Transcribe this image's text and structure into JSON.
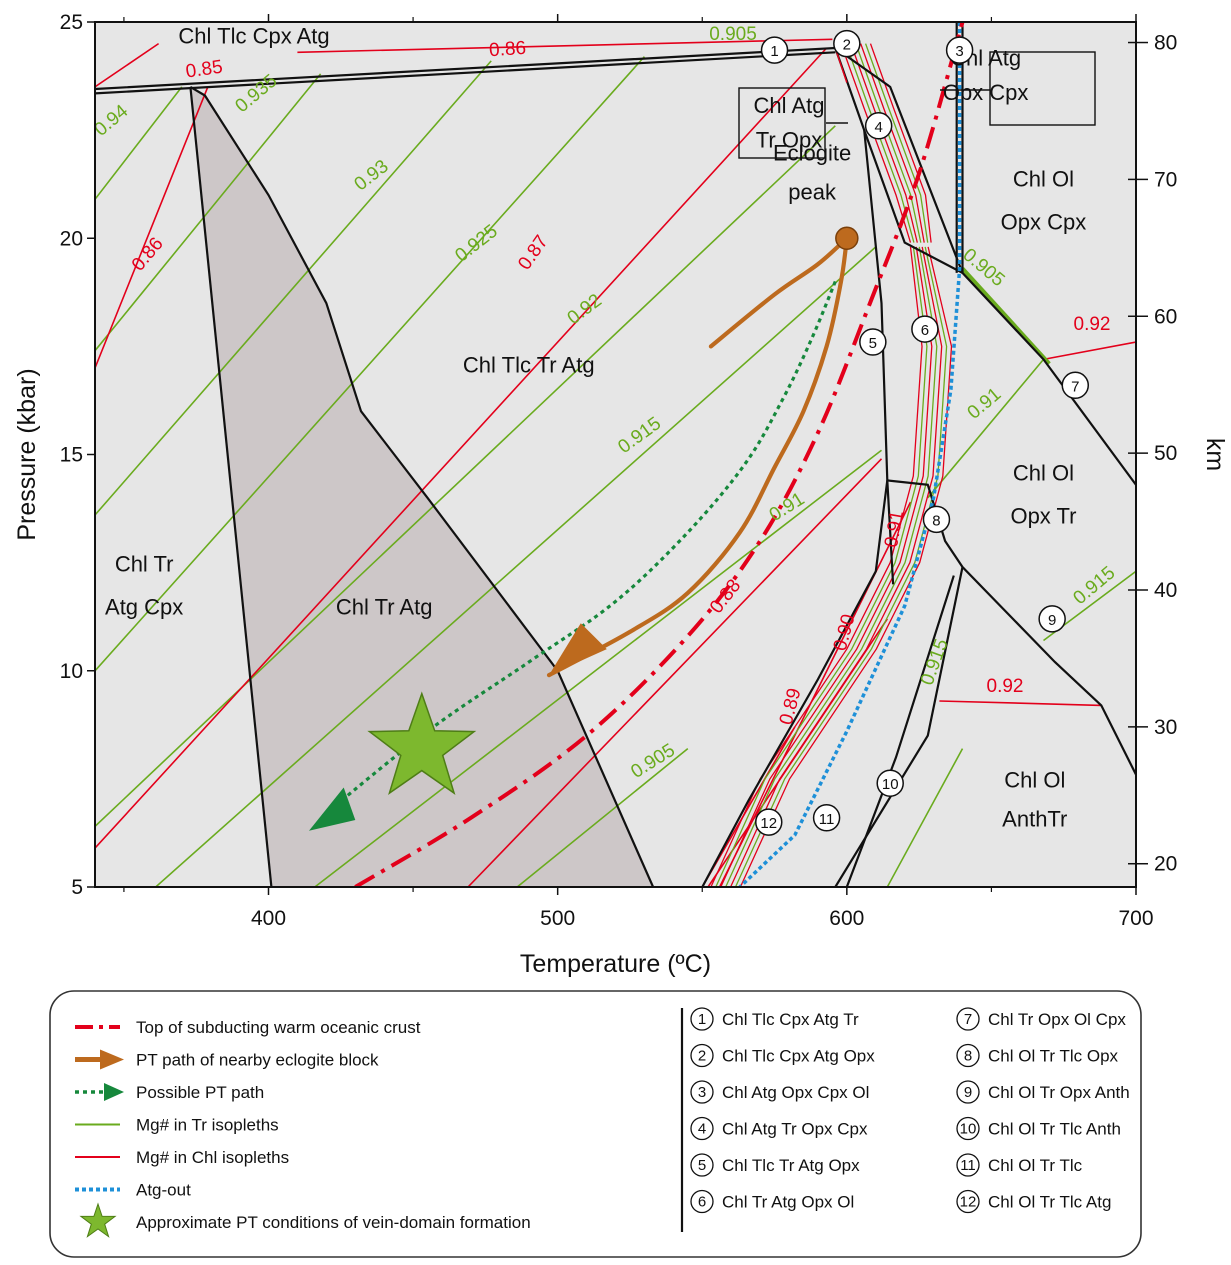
{
  "chart_data": {
    "type": "line",
    "xlabel": "Temperature (ºC)",
    "ylabel": "Pressure (kbar)",
    "y2label": "km",
    "xlim": [
      340,
      700
    ],
    "ylim": [
      5,
      25
    ],
    "x_ticks": [
      400,
      500,
      600,
      700
    ],
    "y_ticks": [
      5,
      10,
      15,
      20,
      25
    ],
    "y2_ticks": [
      20,
      30,
      40,
      50,
      60,
      70,
      80
    ],
    "fields": [
      {
        "label": "Chl Tlc Cpx Atg",
        "x": 395,
        "y": 24.5
      },
      {
        "label": "Chl Atg",
        "x": 648,
        "y": 24.0
      },
      {
        "label": "Opx Cpx",
        "x": 648,
        "y": 23.2
      },
      {
        "label": "Chl Atg",
        "x": 580,
        "y": 22.9
      },
      {
        "label": "Tr Opx",
        "x": 580,
        "y": 22.1
      },
      {
        "label": "Chl Ol",
        "x": 668,
        "y": 21.2
      },
      {
        "label": "Opx Cpx",
        "x": 668,
        "y": 20.2
      },
      {
        "label": "Chl Tlc Tr Atg",
        "x": 490,
        "y": 16.9
      },
      {
        "label": "Chl Ol",
        "x": 668,
        "y": 14.4
      },
      {
        "label": "Opx Tr",
        "x": 668,
        "y": 13.4
      },
      {
        "label": "Chl Tr",
        "x": 357,
        "y": 12.3
      },
      {
        "label": "Atg Cpx",
        "x": 357,
        "y": 11.3
      },
      {
        "label": "Chl Tr Atg",
        "x": 440,
        "y": 11.3
      },
      {
        "label": "Chl Ol",
        "x": 665,
        "y": 7.3
      },
      {
        "label": "AnthTr",
        "x": 665,
        "y": 6.4
      }
    ],
    "eclogite_label": [
      "Eclogite",
      "peak"
    ],
    "eclogite_peak": {
      "x": 600,
      "y": 20
    },
    "tr_isopleths": [
      {
        "label": "0.94",
        "x": [
          340,
          370
        ],
        "y": [
          20.9,
          23.5
        ]
      },
      {
        "label": "0.935",
        "x": [
          340,
          418
        ],
        "y": [
          17.4,
          23.8
        ]
      },
      {
        "label": "0.93",
        "x": [
          340,
          477
        ],
        "y": [
          13.6,
          24.1
        ]
      },
      {
        "label": "0.925",
        "x": [
          340,
          530
        ],
        "y": [
          10.0,
          24.2
        ]
      },
      {
        "label": "0.92",
        "x": [
          340,
          596
        ],
        "y": [
          6.4,
          22.6
        ]
      },
      {
        "label": "0.915",
        "x": [
          361,
          610
        ],
        "y": [
          5.0,
          19.8
        ]
      },
      {
        "label": "0.91",
        "x": [
          416,
          612
        ],
        "y": [
          5.0,
          15.1
        ]
      },
      {
        "label": "0.905",
        "x": [
          486,
          545
        ],
        "y": [
          5.0,
          8.2
        ]
      },
      {
        "label": "0.905",
        "x": [
          640,
          668
        ],
        "y": [
          19.3,
          17.2
        ]
      },
      {
        "label": "0.91",
        "x": [
          628,
          668
        ],
        "y": [
          14.0,
          17.2
        ]
      },
      {
        "label": "0.915",
        "x": [
          668,
          700
        ],
        "y": [
          10.7,
          12.3
        ]
      },
      {
        "label": "0.915",
        "x": [
          614,
          640
        ],
        "y": [
          5.0,
          8.2
        ]
      }
    ],
    "chl_isopleths": [
      {
        "label": "0.85",
        "x": [
          340,
          362
        ],
        "y": [
          23.5,
          24.5
        ]
      },
      {
        "label": "0.86",
        "x": [
          410,
          595
        ],
        "y": [
          24.3,
          24.6
        ]
      },
      {
        "label": "0.86",
        "x": [
          340,
          379
        ],
        "y": [
          17.0,
          23.5
        ]
      },
      {
        "label": "0.87",
        "x": [
          340,
          593
        ],
        "y": [
          5.9,
          24.4
        ]
      },
      {
        "label": "0.88",
        "x": [
          469,
          612
        ],
        "y": [
          5.0,
          14.9
        ]
      },
      {
        "label": "0.89",
        "x": [
          550,
          582
        ],
        "y": [
          5.0,
          8.7
        ]
      },
      {
        "label": "0.90",
        "x": [
          552,
          614
        ],
        "y": [
          5.0,
          11.2
        ]
      },
      {
        "label": "0.91",
        "x": [
          556,
          622
        ],
        "y": [
          5.0,
          13.9
        ]
      },
      {
        "label": "0.92",
        "x": [
          668,
          700
        ],
        "y": [
          17.2,
          17.6
        ]
      },
      {
        "label": "0.92",
        "x": [
          632,
          688
        ],
        "y": [
          9.3,
          9.2
        ]
      }
    ],
    "reactions": [
      {
        "label": "1",
        "x": 575,
        "y": 24.35
      },
      {
        "label": "2",
        "x": 600,
        "y": 24.5
      },
      {
        "label": "3",
        "x": 639,
        "y": 24.35
      },
      {
        "label": "4",
        "x": 611,
        "y": 22.6
      },
      {
        "label": "5",
        "x": 609,
        "y": 17.6
      },
      {
        "label": "6",
        "x": 627,
        "y": 17.9
      },
      {
        "label": "7",
        "x": 679,
        "y": 16.6
      },
      {
        "label": "8",
        "x": 631,
        "y": 13.5
      },
      {
        "label": "9",
        "x": 671,
        "y": 11.2
      },
      {
        "label": "10",
        "x": 615,
        "y": 7.4
      },
      {
        "label": "11",
        "x": 593,
        "y": 6.6
      },
      {
        "label": "12",
        "x": 573,
        "y": 6.5
      }
    ],
    "series": [
      {
        "name": "Top of subducting warm oceanic crust",
        "style": "dashdot",
        "color": "#e3001b",
        "x": [
          430,
          470,
          510,
          545,
          570,
          590,
          608,
          625,
          640
        ],
        "y": [
          5.0,
          6.6,
          8.5,
          10.8,
          13.0,
          15.5,
          18.5,
          21.5,
          25.0
        ]
      },
      {
        "name": "PT path of nearby eclogite block",
        "style": "solid",
        "color": "#bd6a1e",
        "x": [
          600,
          598,
          593,
          585,
          575,
          563,
          545,
          525,
          497
        ],
        "y": [
          20.0,
          19.0,
          17.5,
          16.0,
          14.7,
          13.2,
          11.8,
          10.9,
          9.9
        ]
      },
      {
        "name": "Possible PT path",
        "style": "dotted",
        "color": "#16883c",
        "x": [
          596,
          588,
          578,
          565,
          545,
          520,
          490,
          455,
          418
        ],
        "y": [
          19.0,
          17.7,
          16.3,
          14.8,
          13.2,
          11.6,
          10.2,
          8.6,
          6.6
        ]
      }
    ],
    "legend": [
      {
        "label": "Top of subducting warm oceanic crust",
        "kind": "dashdot",
        "color": "#e3001b"
      },
      {
        "label": "PT path of nearby eclogite block",
        "kind": "arrow",
        "color": "#bd6a1e"
      },
      {
        "label": "Possible PT path",
        "kind": "dotted-arrow",
        "color": "#16883c"
      },
      {
        "label": "Mg# in Tr isopleths",
        "kind": "line",
        "color": "#6aab1e"
      },
      {
        "label": "Mg# in Chl isopleths",
        "kind": "line",
        "color": "#e3001b"
      },
      {
        "label": "Atg-out",
        "kind": "dotted",
        "color": "#1e90d8"
      },
      {
        "label": "Approximate PT conditions of vein-domain formation",
        "kind": "star",
        "color": "#7db82e"
      }
    ],
    "reaction_key": [
      {
        "n": "1",
        "label": "Chl Tlc Cpx Atg Tr"
      },
      {
        "n": "2",
        "label": "Chl Tlc Cpx Atg Opx"
      },
      {
        "n": "3",
        "label": "Chl Atg Opx Cpx Ol"
      },
      {
        "n": "4",
        "label": "Chl Atg Tr Opx Cpx"
      },
      {
        "n": "5",
        "label": "Chl Tlc Tr Atg Opx"
      },
      {
        "n": "6",
        "label": "Chl Tr Atg Opx Ol"
      },
      {
        "n": "7",
        "label": "Chl Tr Opx Ol Cpx"
      },
      {
        "n": "8",
        "label": "Chl Ol Tr Tlc Opx"
      },
      {
        "n": "9",
        "label": "Chl Ol Tr Opx Anth"
      },
      {
        "n": "10",
        "label": "Chl Ol Tr Tlc Anth"
      },
      {
        "n": "11",
        "label": "Chl Ol Tr Tlc"
      },
      {
        "n": "12",
        "label": "Chl Ol Tr Tlc Atg"
      }
    ],
    "vein_star": {
      "x": 453,
      "y": 8.2
    },
    "colors": {
      "tr": "#6aab1e",
      "chl": "#e3001b",
      "atg_out": "#1e90d8",
      "eclogite": "#bd6a1e",
      "possible": "#16883c",
      "shade": "#cdc7c8",
      "field": "#e6e6e6"
    }
  }
}
